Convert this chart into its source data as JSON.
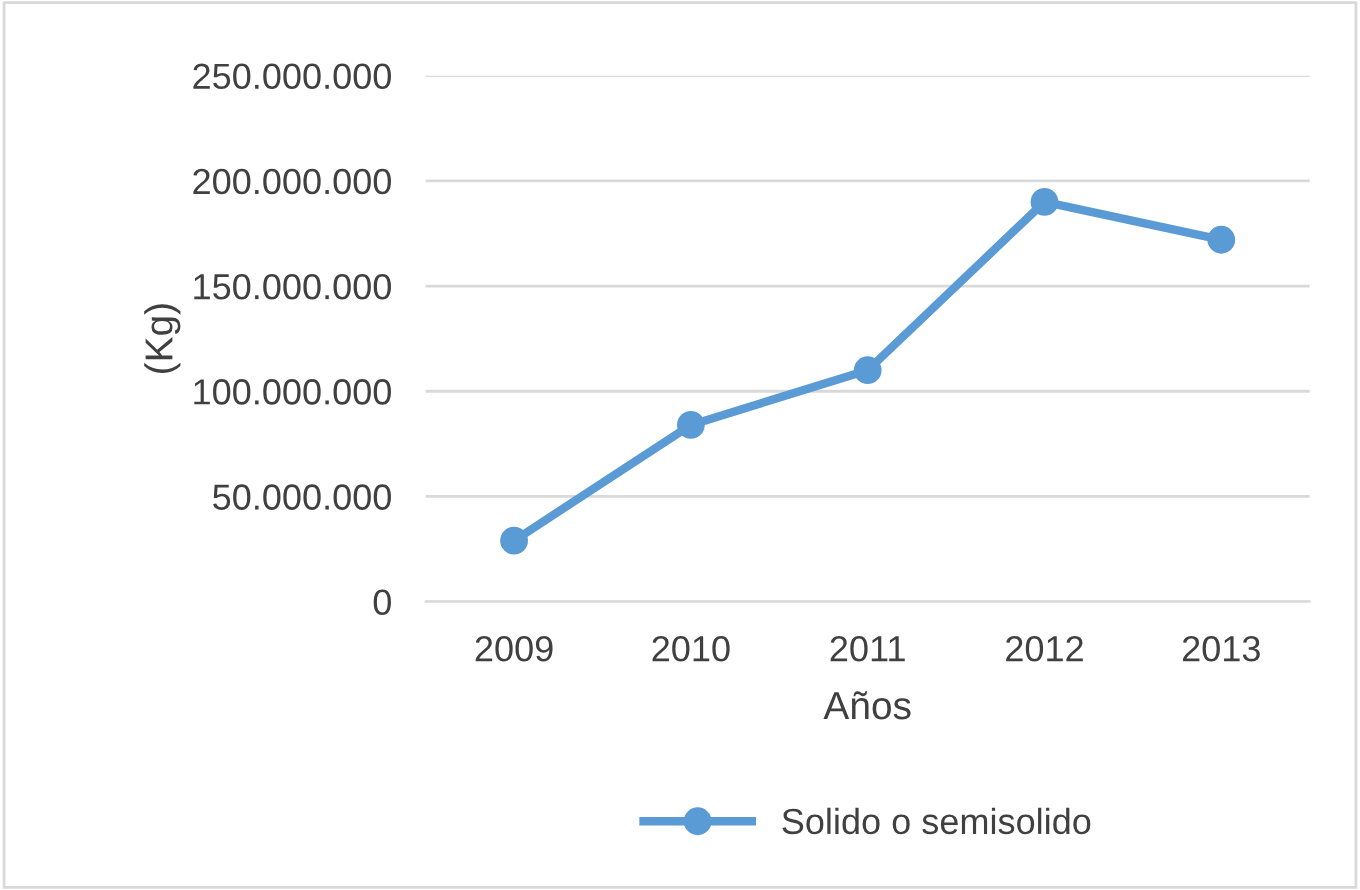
{
  "chart_data": {
    "type": "line",
    "xlabel": "Años",
    "ylabel": "(Kg)",
    "categories": [
      "2009",
      "2010",
      "2011",
      "2012",
      "2013"
    ],
    "series": [
      {
        "name": "Solido o semisolido",
        "color": "#5b9bd5",
        "values": [
          29000000,
          84000000,
          110000000,
          190000000,
          172000000
        ]
      }
    ],
    "ylim": [
      0,
      250000000
    ],
    "yticks": [
      {
        "value": 0,
        "label": "0"
      },
      {
        "value": 50000000,
        "label": "50.000.000"
      },
      {
        "value": 100000000,
        "label": "100.000.000"
      },
      {
        "value": 150000000,
        "label": "150.000.000"
      },
      {
        "value": 200000000,
        "label": "200.000.000"
      },
      {
        "value": 250000000,
        "label": "250.000.000"
      }
    ],
    "grid": "y",
    "legend": "bottom",
    "marker": "circle",
    "line_style": "solid"
  }
}
